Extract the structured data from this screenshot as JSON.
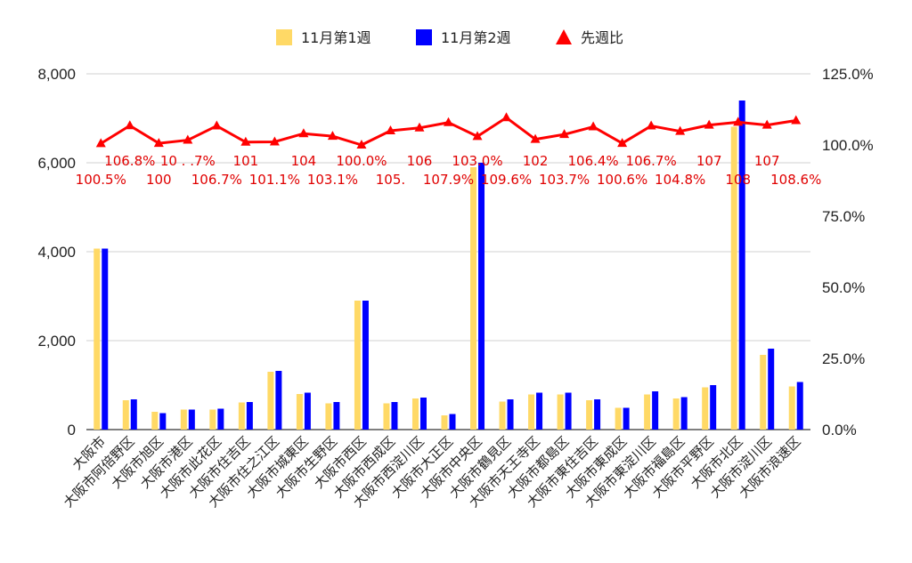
{
  "chart_data": {
    "type": "bar",
    "categories": [
      "大阪市",
      "大阪市阿倍野区",
      "大阪市旭区",
      "大阪市港区",
      "大阪市此花区",
      "大阪市住吉区",
      "大阪市住之江区",
      "大阪市城東区",
      "大阪市生野区",
      "大阪市西区",
      "大阪市西成区",
      "大阪市西淀川区",
      "大阪市大正区",
      "大阪市中央区",
      "大阪市鶴見区",
      "大阪市天王寺区",
      "大阪市都島区",
      "大阪市東住吉区",
      "大阪市東成区",
      "大阪市東淀川区",
      "大阪市福島区",
      "大阪市平野区",
      "大阪市北区",
      "大阪市淀川区",
      "大阪市浪速区"
    ],
    "series": [
      {
        "name": "11月第1週",
        "type": "bar",
        "color": "#ffd966",
        "values": [
          4070,
          660,
          400,
          450,
          450,
          610,
          1300,
          800,
          590,
          2900,
          590,
          700,
          320,
          5900,
          630,
          790,
          790,
          660,
          490,
          790,
          700,
          950,
          6810,
          1680,
          970
        ]
      },
      {
        "name": "11月第2週",
        "type": "bar",
        "color": "#0000ff",
        "values": [
          4070,
          680,
          370,
          450,
          470,
          620,
          1320,
          830,
          620,
          2900,
          620,
          720,
          350,
          6000,
          680,
          830,
          830,
          680,
          490,
          860,
          730,
          1000,
          7400,
          1820,
          1070
        ]
      },
      {
        "name": "先週比",
        "type": "line",
        "axis": "right",
        "color": "#ff0000",
        "values": [
          100.5,
          106.8,
          100.6,
          101.7,
          106.7,
          101.0,
          101.1,
          104.0,
          103.1,
          100.0,
          105.0,
          106.0,
          107.9,
          103.0,
          109.6,
          102.0,
          103.7,
          106.4,
          100.6,
          106.7,
          104.8,
          107.0,
          108.0,
          107.0,
          108.6
        ]
      }
    ],
    "point_labels": [
      "100.5%",
      "106.8%",
      "100",
      "10 . .7%",
      "106.7%",
      "101",
      "101.1%",
      "104",
      "103.1%",
      "100.0%",
      "105.",
      "106",
      "107.9%",
      "103.0%",
      "109.6%",
      "102",
      "103.7%",
      "106.4%",
      "100.6%",
      "106.7%",
      "104.8%",
      "107",
      "108",
      "107",
      "108.6%"
    ],
    "y_left": {
      "min": 0,
      "max": 8000,
      "ticks": [
        "0",
        "2,000",
        "4,000",
        "6,000",
        "8,000"
      ]
    },
    "y_right": {
      "min": 0,
      "max": 125,
      "ticks": [
        "0.0%",
        "25.0%",
        "50.0%",
        "75.0%",
        "100.0%",
        "125.0%"
      ]
    },
    "grid": true,
    "legend_position": "top"
  }
}
